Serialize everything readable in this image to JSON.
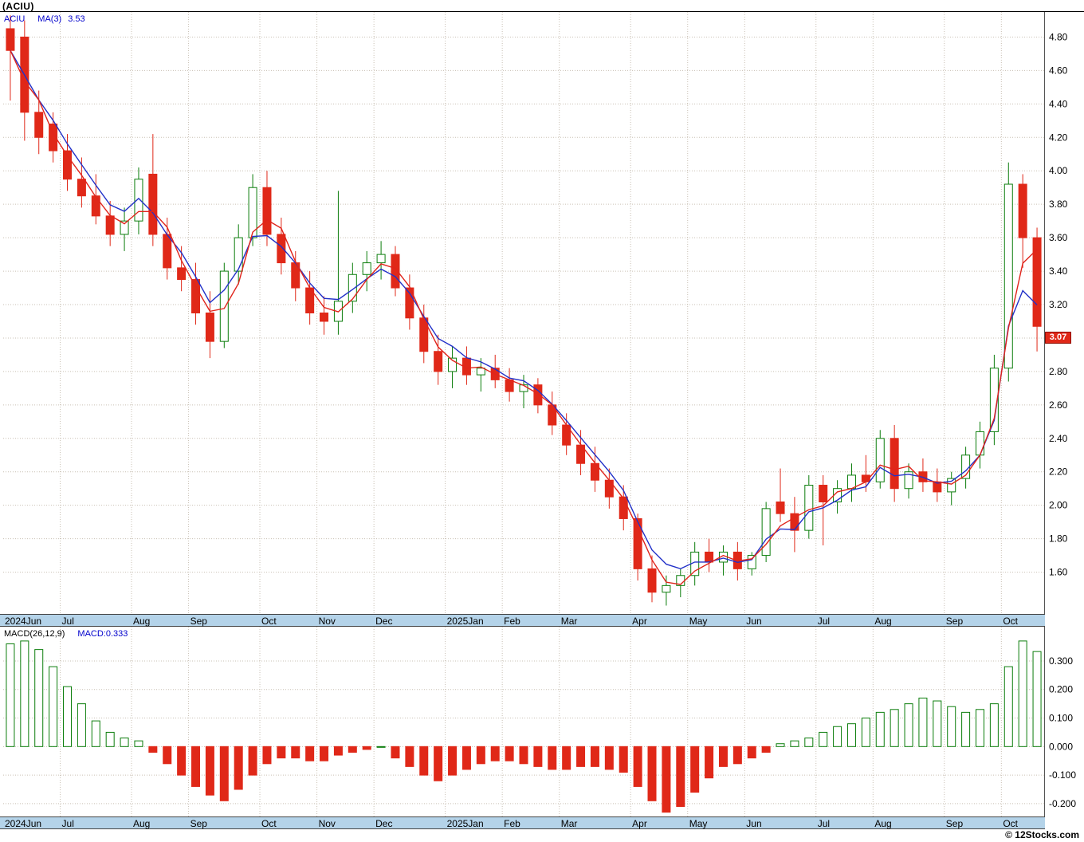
{
  "page": {
    "title": "(ACIU)",
    "footer": "© 12Stocks.com"
  },
  "price_legend": {
    "symbol": "ACIU",
    "ma_label": "MA(3)",
    "ma_value": "3.53"
  },
  "macd_legend": {
    "label": "MACD(26,12,9)",
    "value": "MACD:0.333"
  },
  "chart_data": {
    "type": "candlestick",
    "symbol": "ACIU",
    "interval": "weekly",
    "title": "(ACIU)",
    "legend_position": "top-left",
    "grid": true,
    "price_panel": {
      "ylabel": "",
      "y_ticks": [
        "4.80",
        "4.60",
        "4.40",
        "4.20",
        "4.00",
        "3.80",
        "3.60",
        "3.40",
        "3.20",
        "2.80",
        "2.60",
        "2.40",
        "2.20",
        "2.00",
        "1.80",
        "1.60"
      ],
      "y_range": [
        1.35,
        4.95
      ],
      "grid_step": 0.2,
      "last_price": "3.07",
      "ma3_last": 3.53,
      "candles_ohlc": [
        [
          4.85,
          4.93,
          4.42,
          4.72
        ],
        [
          4.8,
          4.9,
          4.18,
          4.35
        ],
        [
          4.35,
          4.48,
          4.1,
          4.2
        ],
        [
          4.28,
          4.35,
          4.05,
          4.12
        ],
        [
          4.12,
          4.22,
          3.88,
          3.95
        ],
        [
          3.95,
          4.08,
          3.78,
          3.85
        ],
        [
          3.85,
          3.98,
          3.68,
          3.73
        ],
        [
          3.73,
          3.82,
          3.55,
          3.62
        ],
        [
          3.62,
          3.78,
          3.52,
          3.7
        ],
        [
          3.7,
          4.02,
          3.62,
          3.95
        ],
        [
          3.98,
          4.22,
          3.55,
          3.62
        ],
        [
          3.62,
          3.72,
          3.35,
          3.42
        ],
        [
          3.42,
          3.55,
          3.28,
          3.35
        ],
        [
          3.35,
          3.45,
          3.08,
          3.15
        ],
        [
          3.15,
          3.28,
          2.88,
          2.98
        ],
        [
          2.98,
          3.45,
          2.94,
          3.4
        ],
        [
          3.4,
          3.68,
          3.32,
          3.6
        ],
        [
          3.6,
          3.98,
          3.55,
          3.9
        ],
        [
          3.9,
          4.0,
          3.55,
          3.62
        ],
        [
          3.62,
          3.72,
          3.38,
          3.45
        ],
        [
          3.45,
          3.52,
          3.22,
          3.3
        ],
        [
          3.3,
          3.4,
          3.08,
          3.15
        ],
        [
          3.15,
          3.25,
          3.02,
          3.1
        ],
        [
          3.1,
          3.88,
          3.02,
          3.22
        ],
        [
          3.22,
          3.45,
          3.15,
          3.38
        ],
        [
          3.38,
          3.52,
          3.28,
          3.45
        ],
        [
          3.45,
          3.58,
          3.35,
          3.5
        ],
        [
          3.5,
          3.55,
          3.25,
          3.3
        ],
        [
          3.3,
          3.38,
          3.05,
          3.12
        ],
        [
          3.12,
          3.2,
          2.85,
          2.92
        ],
        [
          2.92,
          3.02,
          2.72,
          2.8
        ],
        [
          2.8,
          2.95,
          2.7,
          2.88
        ],
        [
          2.88,
          2.95,
          2.72,
          2.78
        ],
        [
          2.78,
          2.88,
          2.68,
          2.82
        ],
        [
          2.82,
          2.9,
          2.7,
          2.75
        ],
        [
          2.75,
          2.82,
          2.62,
          2.68
        ],
        [
          2.68,
          2.78,
          2.58,
          2.72
        ],
        [
          2.72,
          2.76,
          2.55,
          2.6
        ],
        [
          2.6,
          2.68,
          2.42,
          2.48
        ],
        [
          2.48,
          2.55,
          2.3,
          2.36
        ],
        [
          2.36,
          2.45,
          2.18,
          2.25
        ],
        [
          2.25,
          2.35,
          2.08,
          2.15
        ],
        [
          2.15,
          2.22,
          1.98,
          2.05
        ],
        [
          2.05,
          2.12,
          1.85,
          1.92
        ],
        [
          1.92,
          1.95,
          1.55,
          1.62
        ],
        [
          1.62,
          1.7,
          1.42,
          1.48
        ],
        [
          1.48,
          1.58,
          1.4,
          1.52
        ],
        [
          1.52,
          1.62,
          1.45,
          1.58
        ],
        [
          1.58,
          1.78,
          1.52,
          1.72
        ],
        [
          1.72,
          1.8,
          1.6,
          1.66
        ],
        [
          1.66,
          1.76,
          1.58,
          1.72
        ],
        [
          1.72,
          1.78,
          1.55,
          1.62
        ],
        [
          1.62,
          1.72,
          1.58,
          1.7
        ],
        [
          1.7,
          2.02,
          1.66,
          1.98
        ],
        [
          2.02,
          2.22,
          1.9,
          1.95
        ],
        [
          1.95,
          2.05,
          1.72,
          1.85
        ],
        [
          1.85,
          2.18,
          1.8,
          2.12
        ],
        [
          2.12,
          2.18,
          1.76,
          2.02
        ],
        [
          2.02,
          2.15,
          1.95,
          2.1
        ],
        [
          2.1,
          2.25,
          2.02,
          2.18
        ],
        [
          2.18,
          2.3,
          2.08,
          2.14
        ],
        [
          2.14,
          2.45,
          2.1,
          2.4
        ],
        [
          2.4,
          2.48,
          2.02,
          2.1
        ],
        [
          2.1,
          2.25,
          2.04,
          2.2
        ],
        [
          2.2,
          2.28,
          2.08,
          2.14
        ],
        [
          2.14,
          2.22,
          2.02,
          2.08
        ],
        [
          2.08,
          2.2,
          2.0,
          2.16
        ],
        [
          2.16,
          2.35,
          2.1,
          2.3
        ],
        [
          2.3,
          2.5,
          2.22,
          2.44
        ],
        [
          2.44,
          2.9,
          2.36,
          2.82
        ],
        [
          2.82,
          4.05,
          2.74,
          3.92
        ],
        [
          3.92,
          3.98,
          3.42,
          3.6
        ],
        [
          3.6,
          3.66,
          2.92,
          3.07
        ]
      ]
    },
    "macd_panel": {
      "label": "MACD(26,12,9)",
      "last_value": 0.333,
      "y_ticks": [
        "0.300",
        "0.200",
        "0.100",
        "0.000",
        "-0.100",
        "-0.200"
      ],
      "y_range": [
        -0.245,
        0.42
      ],
      "values": [
        0.36,
        0.37,
        0.34,
        0.28,
        0.21,
        0.15,
        0.09,
        0.05,
        0.03,
        0.02,
        -0.02,
        -0.06,
        -0.1,
        -0.14,
        -0.17,
        -0.19,
        -0.15,
        -0.1,
        -0.06,
        -0.04,
        -0.04,
        -0.05,
        -0.05,
        -0.03,
        -0.02,
        -0.01,
        0.0,
        -0.04,
        -0.07,
        -0.1,
        -0.12,
        -0.1,
        -0.08,
        -0.06,
        -0.05,
        -0.05,
        -0.06,
        -0.07,
        -0.08,
        -0.08,
        -0.07,
        -0.07,
        -0.08,
        -0.09,
        -0.14,
        -0.19,
        -0.23,
        -0.21,
        -0.16,
        -0.11,
        -0.07,
        -0.06,
        -0.04,
        -0.02,
        0.01,
        0.02,
        0.03,
        0.05,
        0.07,
        0.08,
        0.1,
        0.12,
        0.13,
        0.15,
        0.17,
        0.16,
        0.14,
        0.12,
        0.13,
        0.15,
        0.28,
        0.37,
        0.333
      ]
    },
    "x_labels": [
      [
        "2024Jun",
        0
      ],
      [
        "Jul",
        4
      ],
      [
        "Aug",
        9
      ],
      [
        "Sep",
        13
      ],
      [
        "Oct",
        18
      ],
      [
        "Nov",
        22
      ],
      [
        "Dec",
        26
      ],
      [
        "2025Jan",
        31
      ],
      [
        "Feb",
        35
      ],
      [
        "Mar",
        39
      ],
      [
        "Apr",
        44
      ],
      [
        "May",
        48
      ],
      [
        "Jun",
        52
      ],
      [
        "Jul",
        57
      ],
      [
        "Aug",
        61
      ],
      [
        "Sep",
        66
      ],
      [
        "Oct",
        70
      ]
    ],
    "colors": {
      "up": "#0b7d0b",
      "down": "#e02818",
      "ma_fast": "#e0241b",
      "ma_slow": "#2231c8",
      "grid": "#c9c0b4",
      "axis_strip": "#b4d3e9",
      "badge_bg": "#e02818",
      "badge_text": "#ffffff",
      "legend_text": "#0000cc"
    }
  }
}
